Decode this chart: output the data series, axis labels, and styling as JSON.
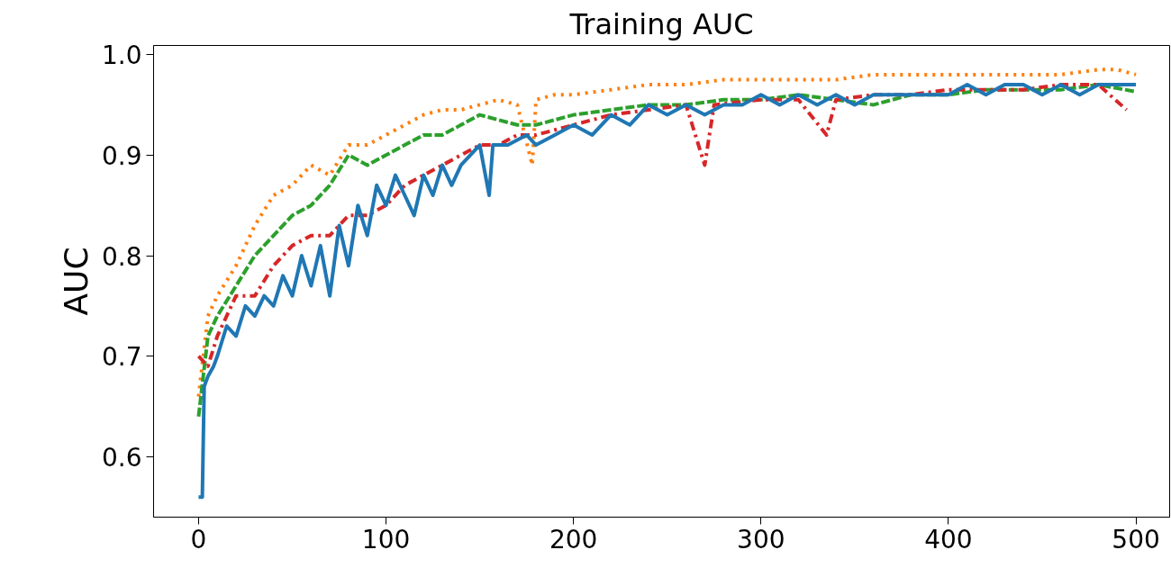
{
  "chart_data": {
    "type": "line",
    "title": "Training AUC",
    "ylabel": "AUC",
    "xlim": [
      -24,
      518
    ],
    "ylim": [
      0.54,
      1.009
    ],
    "xticks": [
      0,
      100,
      200,
      300,
      400,
      500
    ],
    "yticks": [
      {
        "value": 0.6,
        "label": "0.6"
      },
      {
        "value": 0.7,
        "label": "0.7"
      },
      {
        "value": 0.8,
        "label": "0.8"
      },
      {
        "value": 0.9,
        "label": "0.9"
      },
      {
        "value": 1.0,
        "label": "1.0"
      }
    ],
    "grid": false,
    "series": [
      {
        "color": "#ff7f0e",
        "line_style": "dotted",
        "x": [
          0,
          5,
          10,
          20,
          30,
          40,
          50,
          60,
          70,
          80,
          90,
          100,
          110,
          120,
          130,
          140,
          150,
          160,
          170,
          178,
          180,
          190,
          200,
          220,
          240,
          260,
          280,
          300,
          320,
          340,
          360,
          380,
          400,
          420,
          440,
          460,
          480,
          490,
          500
        ],
        "values": [
          0.66,
          0.74,
          0.76,
          0.79,
          0.83,
          0.86,
          0.87,
          0.89,
          0.88,
          0.91,
          0.91,
          0.92,
          0.93,
          0.94,
          0.945,
          0.945,
          0.95,
          0.955,
          0.95,
          0.89,
          0.955,
          0.96,
          0.96,
          0.965,
          0.97,
          0.97,
          0.975,
          0.975,
          0.975,
          0.975,
          0.98,
          0.98,
          0.98,
          0.98,
          0.98,
          0.98,
          0.985,
          0.985,
          0.98
        ]
      },
      {
        "color": "#2ca02c",
        "line_style": "dashed",
        "x": [
          0,
          5,
          10,
          20,
          30,
          40,
          50,
          60,
          70,
          80,
          90,
          100,
          110,
          120,
          130,
          140,
          150,
          160,
          170,
          180,
          200,
          220,
          240,
          260,
          280,
          300,
          320,
          340,
          360,
          380,
          400,
          420,
          440,
          460,
          480,
          500
        ],
        "values": [
          0.64,
          0.72,
          0.74,
          0.77,
          0.8,
          0.82,
          0.84,
          0.85,
          0.87,
          0.9,
          0.89,
          0.9,
          0.91,
          0.92,
          0.92,
          0.93,
          0.94,
          0.935,
          0.93,
          0.93,
          0.94,
          0.945,
          0.95,
          0.95,
          0.955,
          0.955,
          0.96,
          0.955,
          0.95,
          0.96,
          0.96,
          0.965,
          0.965,
          0.965,
          0.97,
          0.963
        ]
      },
      {
        "color": "#d62728",
        "line_style": "dashdot",
        "x": [
          0,
          5,
          10,
          20,
          30,
          40,
          50,
          60,
          70,
          80,
          90,
          100,
          110,
          120,
          130,
          140,
          150,
          160,
          170,
          180,
          200,
          220,
          240,
          260,
          270,
          275,
          300,
          320,
          335,
          340,
          360,
          380,
          400,
          420,
          440,
          460,
          480,
          495
        ],
        "values": [
          0.7,
          0.69,
          0.72,
          0.76,
          0.76,
          0.79,
          0.81,
          0.82,
          0.82,
          0.84,
          0.84,
          0.85,
          0.87,
          0.88,
          0.89,
          0.9,
          0.91,
          0.91,
          0.92,
          0.92,
          0.93,
          0.94,
          0.945,
          0.95,
          0.89,
          0.95,
          0.955,
          0.955,
          0.92,
          0.955,
          0.96,
          0.96,
          0.965,
          0.965,
          0.965,
          0.97,
          0.97,
          0.945
        ]
      },
      {
        "color": "#1f77b4",
        "line_style": "solid",
        "x": [
          0,
          2,
          3,
          5,
          8,
          10,
          15,
          20,
          25,
          30,
          35,
          40,
          45,
          50,
          55,
          60,
          65,
          70,
          75,
          80,
          85,
          90,
          95,
          100,
          105,
          110,
          115,
          120,
          125,
          130,
          135,
          140,
          150,
          155,
          157,
          165,
          175,
          180,
          190,
          200,
          210,
          220,
          230,
          240,
          250,
          260,
          270,
          280,
          290,
          300,
          310,
          320,
          330,
          340,
          350,
          360,
          370,
          380,
          390,
          400,
          410,
          420,
          430,
          440,
          450,
          460,
          470,
          480,
          490,
          500
        ],
        "values": [
          0.56,
          0.56,
          0.67,
          0.68,
          0.69,
          0.7,
          0.73,
          0.72,
          0.75,
          0.74,
          0.76,
          0.75,
          0.78,
          0.76,
          0.8,
          0.77,
          0.81,
          0.76,
          0.83,
          0.79,
          0.85,
          0.82,
          0.87,
          0.85,
          0.88,
          0.86,
          0.84,
          0.88,
          0.86,
          0.89,
          0.87,
          0.89,
          0.91,
          0.86,
          0.91,
          0.91,
          0.92,
          0.91,
          0.92,
          0.93,
          0.92,
          0.94,
          0.93,
          0.95,
          0.94,
          0.95,
          0.94,
          0.95,
          0.95,
          0.96,
          0.95,
          0.96,
          0.95,
          0.96,
          0.95,
          0.96,
          0.96,
          0.96,
          0.96,
          0.96,
          0.97,
          0.96,
          0.97,
          0.97,
          0.96,
          0.97,
          0.96,
          0.97,
          0.97,
          0.97
        ]
      }
    ]
  }
}
